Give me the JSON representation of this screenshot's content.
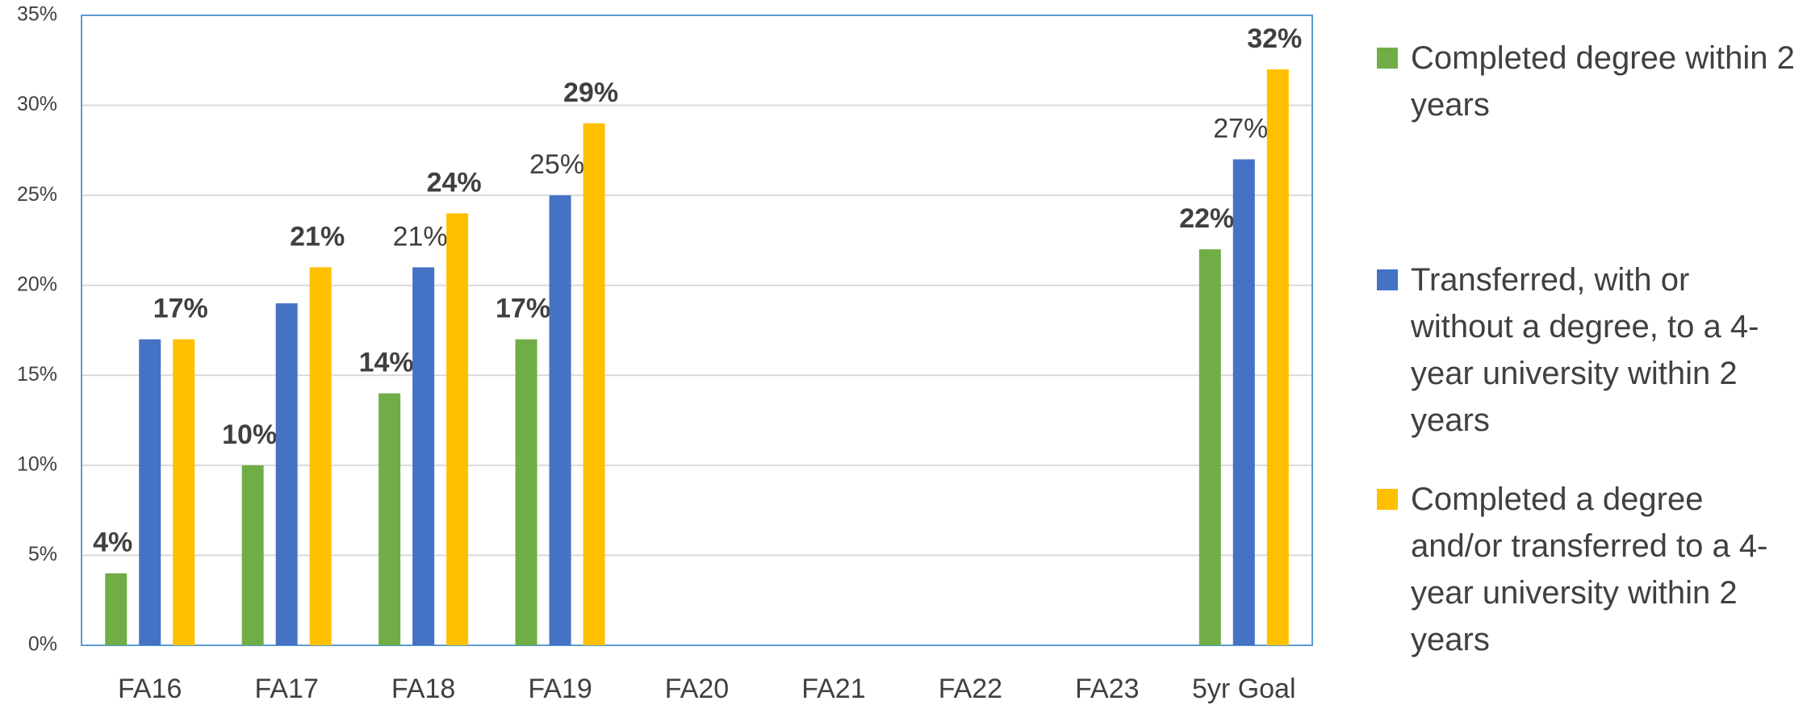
{
  "chart_data": {
    "type": "bar",
    "categories": [
      "FA16",
      "FA17",
      "FA18",
      "FA19",
      "FA20",
      "FA21",
      "FA22",
      "FA23",
      "5yr Goal"
    ],
    "series": [
      {
        "name": "Completed degree within 2 years",
        "color": "#70ad47",
        "values": [
          4,
          10,
          14,
          17,
          null,
          null,
          null,
          null,
          22
        ],
        "value_labels": [
          "4%",
          "10%",
          "14%",
          "17%",
          null,
          null,
          null,
          null,
          "22%"
        ],
        "bold": true
      },
      {
        "name": "Transferred, with or without a degree, to a 4-year university within 2 years",
        "color": "#4472c4",
        "values": [
          17,
          19,
          21,
          25,
          null,
          null,
          null,
          null,
          27
        ],
        "value_labels": [
          null,
          null,
          "21%",
          "25%",
          null,
          null,
          null,
          null,
          "27%"
        ],
        "bold": false
      },
      {
        "name": "Completed a degree and/or transferred to a 4-year university within 2 years",
        "color": "#ffc000",
        "values": [
          17,
          21,
          24,
          29,
          null,
          null,
          null,
          null,
          32
        ],
        "value_labels": [
          "17%",
          "21%",
          "24%",
          "29%",
          null,
          null,
          null,
          null,
          "32%"
        ],
        "bold": true
      }
    ],
    "ylim": [
      0,
      35
    ],
    "yticks": [
      {
        "value": 0,
        "label": "0%"
      },
      {
        "value": 5,
        "label": "5%"
      },
      {
        "value": 10,
        "label": "10%"
      },
      {
        "value": 15,
        "label": "15%"
      },
      {
        "value": 20,
        "label": "20%"
      },
      {
        "value": 25,
        "label": "25%"
      },
      {
        "value": 30,
        "label": "30%"
      },
      {
        "value": 35,
        "label": "35%"
      }
    ],
    "grid": true,
    "legend": "right"
  }
}
